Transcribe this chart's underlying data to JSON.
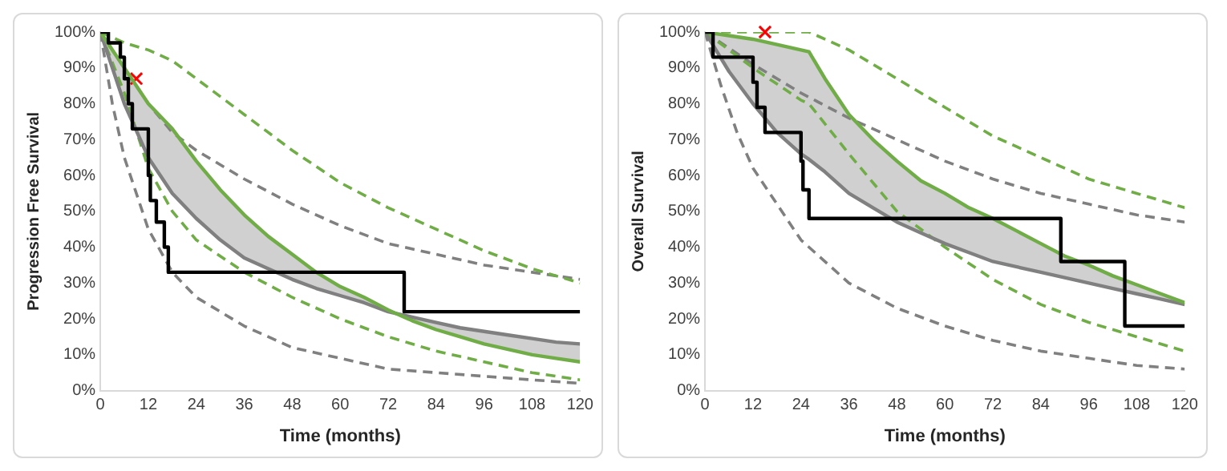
{
  "chart_data": [
    {
      "type": "line",
      "xlabel": "Time (months)",
      "ylabel": "Progression Free Survival",
      "xlim": [
        0,
        120
      ],
      "xticks": [
        0,
        12,
        24,
        36,
        48,
        60,
        72,
        84,
        96,
        108,
        120
      ],
      "ylim": [
        0,
        100
      ],
      "yticks": [
        {
          "value": 0,
          "label": "0%"
        },
        {
          "value": 10,
          "label": "10%"
        },
        {
          "value": 20,
          "label": "20%"
        },
        {
          "value": 30,
          "label": "30%"
        },
        {
          "value": 40,
          "label": "40%"
        },
        {
          "value": 50,
          "label": "50%"
        },
        {
          "value": 60,
          "label": "60%"
        },
        {
          "value": 70,
          "label": "70%"
        },
        {
          "value": 80,
          "label": "80%"
        },
        {
          "value": 90,
          "label": "90%"
        },
        {
          "value": 100,
          "label": "100%"
        }
      ],
      "grid": false,
      "legend": false,
      "marker": "none",
      "series": [
        {
          "type": "step",
          "color": "#000000",
          "x": [
            0,
            2,
            5,
            6,
            7,
            8,
            12,
            12.5,
            14,
            16,
            17,
            76,
            120
          ],
          "values": [
            100,
            97,
            93,
            87,
            80,
            73,
            60,
            53,
            47,
            40,
            33,
            22,
            22
          ]
        },
        {
          "type": "line",
          "color": "#70ad47",
          "x": [
            0,
            6,
            12,
            18,
            24,
            30,
            36,
            42,
            48,
            54,
            60,
            66,
            72,
            78,
            84,
            90,
            96,
            102,
            108,
            114,
            120
          ],
          "values": [
            100,
            90,
            80,
            73,
            64,
            56,
            49,
            43,
            38,
            33,
            29,
            26,
            22.5,
            19.5,
            17,
            15,
            13,
            11.5,
            10,
            9,
            8
          ],
          "lower": [
            100,
            80,
            65,
            55,
            48,
            42,
            37,
            34,
            31,
            28.5,
            26.5,
            24.5,
            22,
            20.5,
            19,
            17.5,
            16.5,
            15.5,
            14.5,
            13.5,
            13
          ],
          "upper": [
            100,
            90,
            80,
            73,
            64,
            56,
            49,
            43,
            38,
            33,
            29,
            26,
            22.5,
            19.5,
            17,
            15,
            13,
            11.5,
            10,
            9,
            8
          ]
        },
        {
          "type": "line",
          "color": "#808080",
          "x": [
            0,
            6,
            12,
            18,
            24,
            30,
            36,
            42,
            48,
            54,
            60,
            66,
            72,
            78,
            84,
            90,
            96,
            102,
            108,
            114,
            120
          ],
          "values": [
            100,
            80,
            65,
            55,
            48,
            42,
            37,
            34,
            31,
            28.5,
            26.5,
            24.5,
            22,
            20.5,
            19,
            17.5,
            16.5,
            15.5,
            14.5,
            13.5,
            13
          ]
        },
        {
          "type": "line",
          "line_style": "dashed",
          "color": "#70ad47",
          "x": [
            0,
            6,
            12,
            18,
            24,
            36,
            48,
            60,
            72,
            84,
            96,
            108,
            120
          ],
          "values": [
            100,
            97,
            95,
            92,
            87,
            77,
            67,
            58,
            51,
            45,
            39,
            34,
            30
          ]
        },
        {
          "type": "line",
          "line_style": "dashed",
          "color": "#70ad47",
          "x": [
            0,
            6,
            12,
            18,
            24,
            36,
            48,
            60,
            72,
            84,
            96,
            108,
            120
          ],
          "values": [
            100,
            83,
            62,
            50,
            42,
            33,
            26,
            20,
            15,
            11,
            8,
            5,
            3
          ]
        },
        {
          "type": "line",
          "line_style": "dashed",
          "color": "#808080",
          "x": [
            0,
            6,
            12,
            18,
            24,
            36,
            48,
            60,
            72,
            84,
            96,
            108,
            120
          ],
          "values": [
            100,
            90,
            80,
            72,
            67,
            59,
            52,
            46,
            41,
            38,
            35,
            33,
            31
          ]
        },
        {
          "type": "line",
          "line_style": "dashed",
          "color": "#808080",
          "x": [
            0,
            3,
            6,
            12,
            18,
            24,
            36,
            48,
            60,
            72,
            84,
            96,
            108,
            120
          ],
          "values": [
            100,
            80,
            65,
            45,
            33,
            26,
            18,
            12,
            9,
            6,
            5,
            4,
            3,
            2
          ]
        },
        {
          "type": "scatter",
          "marker": "cross",
          "color": "#ff0000",
          "x": [
            9
          ],
          "values": [
            87
          ]
        }
      ]
    },
    {
      "type": "line",
      "xlabel": "Time (months)",
      "ylabel": "Overall Survival",
      "xlim": [
        0,
        120
      ],
      "xticks": [
        0,
        12,
        24,
        36,
        48,
        60,
        72,
        84,
        96,
        108,
        120
      ],
      "ylim": [
        0,
        100
      ],
      "yticks": [
        {
          "value": 0,
          "label": "0%"
        },
        {
          "value": 10,
          "label": "10%"
        },
        {
          "value": 20,
          "label": "20%"
        },
        {
          "value": 30,
          "label": "30%"
        },
        {
          "value": 40,
          "label": "40%"
        },
        {
          "value": 50,
          "label": "50%"
        },
        {
          "value": 60,
          "label": "60%"
        },
        {
          "value": 70,
          "label": "70%"
        },
        {
          "value": 80,
          "label": "80%"
        },
        {
          "value": 90,
          "label": "90%"
        },
        {
          "value": 100,
          "label": "100%"
        }
      ],
      "grid": false,
      "legend": false,
      "marker": "none",
      "series": [
        {
          "type": "step",
          "color": "#000000",
          "x": [
            0,
            2,
            12,
            13,
            15,
            24,
            24.5,
            26,
            89,
            105,
            120
          ],
          "values": [
            100,
            93,
            86,
            79,
            72,
            64,
            56,
            48,
            36,
            18,
            18
          ]
        },
        {
          "type": "line",
          "color": "#70ad47",
          "x": [
            0,
            6,
            12,
            18,
            24,
            26,
            30,
            36,
            42,
            48,
            54,
            60,
            66,
            72,
            78,
            84,
            90,
            96,
            102,
            108,
            114,
            120
          ],
          "values": [
            100,
            99,
            98,
            96.5,
            95,
            94.5,
            87,
            77,
            70,
            64,
            58.5,
            55,
            51,
            48,
            44.5,
            41,
            37.5,
            35,
            32,
            29.5,
            27,
            24.5
          ],
          "lower": [
            100,
            89,
            80,
            72,
            66,
            64.5,
            61,
            55,
            51,
            47,
            44,
            41,
            38.5,
            36,
            34.5,
            33,
            31.5,
            30,
            28.5,
            27,
            25.5,
            24
          ],
          "upper": [
            100,
            99,
            98,
            96.5,
            95,
            94.5,
            87,
            77,
            70,
            64,
            58.5,
            55,
            51,
            48,
            44.5,
            41,
            37.5,
            35,
            32,
            29.5,
            27,
            24.5
          ]
        },
        {
          "type": "line",
          "color": "#808080",
          "x": [
            0,
            6,
            12,
            18,
            24,
            26,
            30,
            36,
            42,
            48,
            54,
            60,
            66,
            72,
            78,
            84,
            90,
            96,
            102,
            108,
            114,
            120
          ],
          "values": [
            100,
            89,
            80,
            72,
            66,
            64.5,
            61,
            55,
            51,
            47,
            44,
            41,
            38.5,
            36,
            34.5,
            33,
            31.5,
            30,
            28.5,
            27,
            25.5,
            24
          ]
        },
        {
          "type": "line",
          "line_style": "dashed",
          "color": "#70ad47",
          "x": [
            0,
            26,
            36,
            48,
            60,
            72,
            84,
            96,
            108,
            120
          ],
          "values": [
            100,
            100,
            95,
            87,
            79,
            71,
            65,
            59,
            55,
            51
          ]
        },
        {
          "type": "line",
          "line_style": "dashed",
          "color": "#70ad47",
          "x": [
            0,
            12,
            24,
            26,
            36,
            48,
            60,
            72,
            84,
            96,
            108,
            120
          ],
          "values": [
            100,
            90,
            81,
            80,
            66,
            50,
            40,
            31,
            24,
            19,
            15,
            11
          ]
        },
        {
          "type": "line",
          "line_style": "dashed",
          "color": "#808080",
          "x": [
            0,
            12,
            24,
            36,
            48,
            60,
            72,
            84,
            96,
            108,
            120
          ],
          "values": [
            100,
            91,
            83,
            76,
            70,
            64,
            59,
            55,
            52,
            49,
            47
          ]
        },
        {
          "type": "line",
          "line_style": "dashed",
          "color": "#808080",
          "x": [
            0,
            4,
            8,
            12,
            24,
            36,
            48,
            60,
            72,
            84,
            96,
            108,
            120
          ],
          "values": [
            100,
            85,
            72,
            62,
            42,
            30,
            23,
            18,
            14,
            11,
            9,
            7,
            6
          ]
        },
        {
          "type": "scatter",
          "marker": "cross",
          "color": "#ff0000",
          "x": [
            15
          ],
          "values": [
            100
          ]
        }
      ]
    }
  ]
}
